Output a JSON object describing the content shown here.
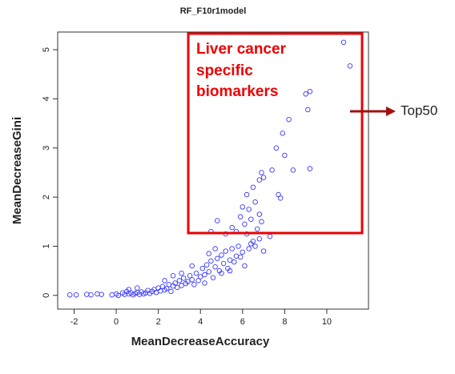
{
  "chart_data": {
    "type": "scatter",
    "title": "RF_F10r1model",
    "x_label": "MeanDecreaseAccuracy",
    "y_label": "MeanDecreaseGini",
    "color": "#3a3aff",
    "x": [
      10.8,
      11.1,
      9.2,
      9.0,
      9.1,
      8.2,
      7.9,
      7.6,
      8.0,
      7.4,
      6.9,
      9.2,
      8.4,
      6.8,
      7.0,
      6.5,
      6.2,
      7.7,
      7.8,
      6.6,
      6.0,
      6.3,
      6.8,
      5.9,
      6.4,
      4.8,
      6.9,
      6.1,
      5.5,
      6.7,
      5.7,
      4.5,
      6.2,
      7.3,
      6.8,
      5.2,
      6.5,
      6.4,
      -2.2,
      -1.9,
      -1.4,
      -1.2,
      -0.9,
      -0.7,
      -0.2,
      0.0,
      0.1,
      0.3,
      0.4,
      0.5,
      0.6,
      0.7,
      0.8,
      0.9,
      1.0,
      1.1,
      1.2,
      1.3,
      1.4,
      1.5,
      1.6,
      1.7,
      1.8,
      1.9,
      2.0,
      2.1,
      2.2,
      2.3,
      2.4,
      2.5,
      2.6,
      2.7,
      2.8,
      2.9,
      3.0,
      3.1,
      3.2,
      3.3,
      3.4,
      3.5,
      3.6,
      3.7,
      3.8,
      3.9,
      4.0,
      4.1,
      4.2,
      4.3,
      4.4,
      4.5,
      4.6,
      4.7,
      4.8,
      4.9,
      5.0,
      5.1,
      5.2,
      5.3,
      5.4,
      5.5,
      5.6,
      5.7,
      5.8,
      5.9,
      6.0,
      6.1,
      4.4,
      4.7,
      3.6,
      3.1,
      2.7,
      5.0,
      5.4,
      1.0,
      0.6,
      2.3,
      4.2,
      6.3,
      6.6,
      7.0
    ],
    "values": [
      5.15,
      4.67,
      4.15,
      4.1,
      3.78,
      3.58,
      3.3,
      3.0,
      2.85,
      2.55,
      2.5,
      2.58,
      2.55,
      2.35,
      2.4,
      2.2,
      2.05,
      2.05,
      1.98,
      1.9,
      1.8,
      1.75,
      1.65,
      1.6,
      1.55,
      1.52,
      1.5,
      1.45,
      1.38,
      1.35,
      1.3,
      1.3,
      1.25,
      1.2,
      1.15,
      1.25,
      1.1,
      1.05,
      0.01,
      0.01,
      0.02,
      0.01,
      0.03,
      0.02,
      0.01,
      0.03,
      0.0,
      0.05,
      0.02,
      0.08,
      0.03,
      0.05,
      0.01,
      0.04,
      0.06,
      0.02,
      0.07,
      0.03,
      0.05,
      0.1,
      0.04,
      0.08,
      0.12,
      0.06,
      0.15,
      0.09,
      0.18,
      0.11,
      0.14,
      0.22,
      0.08,
      0.19,
      0.25,
      0.16,
      0.3,
      0.2,
      0.35,
      0.24,
      0.28,
      0.4,
      0.32,
      0.22,
      0.45,
      0.3,
      0.38,
      0.55,
      0.42,
      0.62,
      0.48,
      0.7,
      0.36,
      0.58,
      0.75,
      0.5,
      0.82,
      0.65,
      0.9,
      0.55,
      0.72,
      0.95,
      0.68,
      0.8,
      1.0,
      0.78,
      0.88,
      0.6,
      0.85,
      0.95,
      0.6,
      0.45,
      0.4,
      0.45,
      0.5,
      0.15,
      0.12,
      0.3,
      0.25,
      0.95,
      1.0,
      0.9
    ],
    "xlim": [
      -2.78,
      11.98
    ],
    "ylim": [
      -0.28,
      5.36
    ],
    "xticks": [
      -2,
      0,
      2,
      4,
      6,
      8,
      10
    ],
    "yticks": [
      0,
      1,
      2,
      3,
      4,
      5
    ],
    "annotations": {
      "box_text": [
        "Liver cancer",
        "specific",
        "biomarkers"
      ],
      "arrow_text": "Top50"
    }
  }
}
